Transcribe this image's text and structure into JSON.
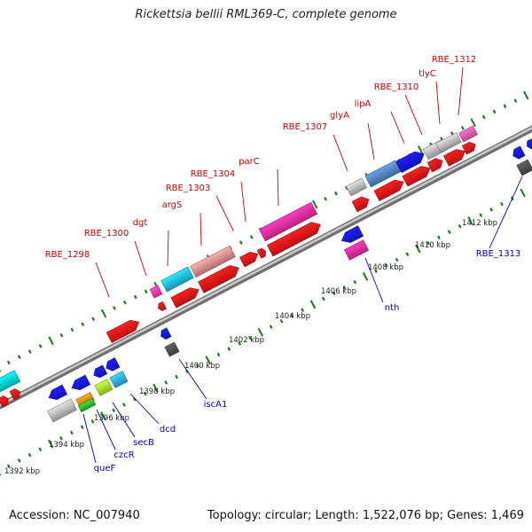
{
  "title": "Rickettsia bellii RML369-C, complete genome",
  "footer": {
    "accession": "Accession: NC_007940",
    "topology": "Topology: circular; Length: 1,522,076 bp; Genes: 1,469"
  },
  "colors": {
    "forward_label": "#cc0000",
    "reverse_label": "#0000bb",
    "tick": "#1a7a1a",
    "backbone": "#888888"
  },
  "scale_labels": [
    "1392 kbp",
    "1394 kbp",
    "1396 kbp",
    "1398 kbp",
    "1400 kbp",
    "1402 kbp",
    "1404 kbp",
    "1406 kbp",
    "1408 kbp",
    "1410 kbp",
    "1412 kbp"
  ],
  "forward_genes": [
    "RBE_1298",
    "RBE_1300",
    "dgt",
    "argS",
    "RBE_1303",
    "RBE_1304",
    "parC",
    "RBE_1307",
    "glyA",
    "lipA",
    "RBE_1310",
    "tlyC",
    "RBE_1312"
  ],
  "reverse_genes": [
    "queF",
    "czcR",
    "secB",
    "dcd",
    "iscA1",
    "nth",
    "RBE_1313"
  ]
}
